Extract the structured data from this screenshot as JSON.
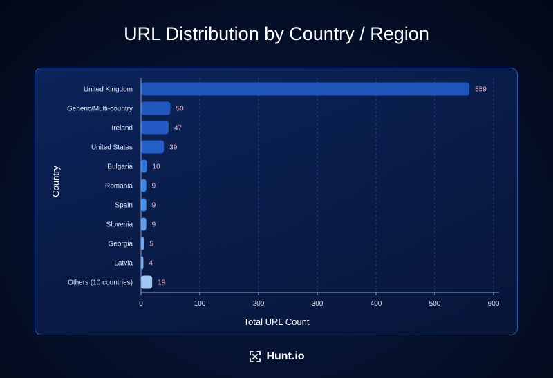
{
  "chart_data": {
    "type": "bar",
    "orientation": "horizontal",
    "title": "URL Distribution by Country / Region",
    "xlabel": "Total URL Count",
    "ylabel": "Country",
    "xlim": [
      0,
      600
    ],
    "xticks": [
      0,
      100,
      200,
      300,
      400,
      500,
      600
    ],
    "grid": "vertical dashed",
    "categories": [
      "United Kingdom",
      "Generic/Multi-country",
      "Ireland",
      "United States",
      "Bulgaria",
      "Romania",
      "Spain",
      "Slovenia",
      "Georgia",
      "Latvia",
      "Others (10 countries)"
    ],
    "values": [
      559,
      50,
      47,
      39,
      10,
      9,
      9,
      9,
      5,
      4,
      19
    ],
    "colors": [
      "#1f55b8",
      "#2158c0",
      "#2259c2",
      "#245fc9",
      "#2a74de",
      "#3d86e6",
      "#4a8fe8",
      "#5e9bea",
      "#6fa6ee",
      "#82b3f1",
      "#a3c6f5"
    ],
    "value_label_color": "#f2b6c8"
  },
  "brand": {
    "name": "Hunt.io",
    "icon": "hunt-logo-icon"
  }
}
